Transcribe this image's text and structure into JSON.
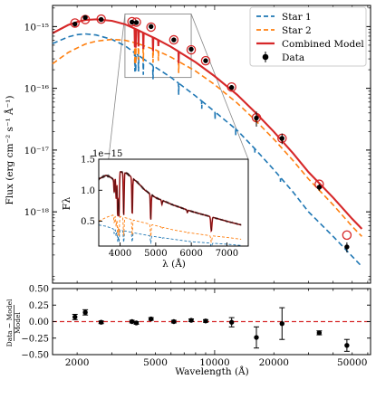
{
  "chart_data": [
    {
      "id": "main",
      "type": "scatter",
      "xscale": "log",
      "yscale": "log",
      "xlim": [
        1500,
        62000
      ],
      "ylim": [
        7e-20,
        2.2e-15
      ],
      "ylabel": "Flux (erg cm⁻² s⁻¹ Å⁻¹)",
      "yticks": [
        {
          "value": 1e-15,
          "label": "10⁻¹⁵"
        },
        {
          "value": 1e-16,
          "label": "10⁻¹⁶"
        },
        {
          "value": 1e-17,
          "label": "10⁻¹⁷"
        },
        {
          "value": 1e-18,
          "label": "10⁻¹⁸"
        }
      ],
      "grid": false,
      "legend_position": "top-right",
      "legend": [
        {
          "key": "star1",
          "label": "Star 1"
        },
        {
          "key": "star2",
          "label": "Star 2"
        },
        {
          "key": "combined",
          "label": "Combined Model"
        },
        {
          "key": "data",
          "label": "Data"
        }
      ],
      "colors": {
        "star1": "#1f77b4",
        "star2": "#ff7f0e",
        "combined": "#d62728",
        "data": "#000000"
      },
      "star1": [
        [
          1500,
          5.3e-16
        ],
        [
          1800,
          6.8e-16
        ],
        [
          2000,
          7.4e-16
        ],
        [
          2200,
          7.6e-16
        ],
        [
          2500,
          7.3e-16
        ],
        [
          3000,
          6.2e-16
        ],
        [
          3500,
          4.9e-16
        ],
        [
          4000,
          3.6e-16
        ],
        [
          5000,
          2.2e-16
        ],
        [
          6000,
          1.5e-16
        ],
        [
          8000,
          7.5e-17
        ],
        [
          10000,
          4.2e-17
        ],
        [
          13000,
          2.1e-17
        ],
        [
          16000,
          1.05e-17
        ],
        [
          20000,
          4.8e-18
        ],
        [
          25000,
          2.1e-18
        ],
        [
          30000,
          1e-18
        ],
        [
          40000,
          4e-19
        ],
        [
          50000,
          1.9e-19
        ],
        [
          56000,
          1.3e-19
        ]
      ],
      "star1_lines": [
        [
          3933,
          0.5
        ],
        [
          3968,
          0.5
        ],
        [
          4101,
          0.45
        ],
        [
          4340,
          0.45
        ],
        [
          4861,
          0.4
        ],
        [
          6563,
          0.35
        ],
        [
          8600,
          0.25
        ],
        [
          10050,
          0.25
        ],
        [
          12800,
          0.2
        ],
        [
          16000,
          0.15
        ],
        [
          21600,
          0.15
        ]
      ],
      "star2": [
        [
          1500,
          2.5e-16
        ],
        [
          1800,
          3.8e-16
        ],
        [
          2000,
          4.5e-16
        ],
        [
          2200,
          5.2e-16
        ],
        [
          2500,
          5.8e-16
        ],
        [
          3000,
          6.2e-16
        ],
        [
          3500,
          6e-16
        ],
        [
          4000,
          5.4e-16
        ],
        [
          5000,
          4.2e-16
        ],
        [
          6000,
          3.2e-16
        ],
        [
          8000,
          1.9e-16
        ],
        [
          10000,
          1.15e-16
        ],
        [
          13000,
          5.8e-17
        ],
        [
          16000,
          3.1e-17
        ],
        [
          20000,
          1.5e-17
        ],
        [
          25000,
          6.8e-18
        ],
        [
          30000,
          3.4e-18
        ],
        [
          40000,
          1.3e-18
        ],
        [
          50000,
          5.8e-19
        ],
        [
          56000,
          4e-19
        ]
      ],
      "star2_lines": [
        [
          3933,
          0.55
        ],
        [
          3968,
          0.55
        ],
        [
          4101,
          0.45
        ],
        [
          4340,
          0.45
        ],
        [
          4861,
          0.4
        ],
        [
          5175,
          0.3
        ],
        [
          6563,
          0.35
        ]
      ],
      "combined": [
        [
          1500,
          7.8e-16
        ],
        [
          1800,
          1.06e-15
        ],
        [
          2000,
          1.19e-15
        ],
        [
          2200,
          1.28e-15
        ],
        [
          2500,
          1.31e-15
        ],
        [
          3000,
          1.24e-15
        ],
        [
          3500,
          1.09e-15
        ],
        [
          4000,
          9e-16
        ],
        [
          5000,
          6.4e-16
        ],
        [
          6000,
          4.7e-16
        ],
        [
          8000,
          2.65e-16
        ],
        [
          10000,
          1.57e-16
        ],
        [
          13000,
          7.9e-17
        ],
        [
          16000,
          4.15e-17
        ],
        [
          20000,
          1.98e-17
        ],
        [
          25000,
          8.9e-18
        ],
        [
          30000,
          4.4e-18
        ],
        [
          40000,
          1.7e-18
        ],
        [
          50000,
          7.7e-19
        ],
        [
          56000,
          5.3e-19
        ]
      ],
      "combined_lines": [
        [
          3933,
          0.5
        ],
        [
          3968,
          0.5
        ],
        [
          4101,
          0.45
        ],
        [
          4340,
          0.45
        ],
        [
          4861,
          0.4
        ],
        [
          5175,
          0.2
        ],
        [
          6563,
          0.35
        ]
      ],
      "model_points": [
        [
          1950,
          1.14e-15
        ],
        [
          2200,
          1.3e-15
        ],
        [
          2650,
          1.32e-15
        ],
        [
          3800,
          1.2e-15
        ],
        [
          4000,
          1.18e-15
        ],
        [
          4750,
          9.8e-16
        ],
        [
          6200,
          6.1e-16
        ],
        [
          7600,
          4.2e-16
        ],
        [
          9000,
          2.8e-16
        ],
        [
          12200,
          1.05e-16
        ],
        [
          16300,
          3.35e-17
        ],
        [
          22000,
          1.55e-17
        ],
        [
          34000,
          2.8e-18
        ],
        [
          47000,
          4.2e-19
        ]
      ],
      "data": [
        {
          "x": 1950,
          "y": 1.1e-15,
          "err": [
            9.5e-17,
            9.5e-17
          ]
        },
        {
          "x": 2200,
          "y": 1.4e-15,
          "err": [
            1.2e-16,
            1.2e-16
          ]
        },
        {
          "x": 2650,
          "y": 1.3e-15,
          "err": [
            8e-17,
            8e-17
          ]
        },
        {
          "x": 3800,
          "y": 1.18e-15,
          "err": [
            7e-17,
            7e-17
          ]
        },
        {
          "x": 4000,
          "y": 1.16e-15,
          "err": [
            7e-17,
            7e-17
          ]
        },
        {
          "x": 4750,
          "y": 1e-15,
          "err": [
            5e-17,
            5e-17
          ]
        },
        {
          "x": 6200,
          "y": 6.1e-16,
          "err": [
            4e-17,
            4e-17
          ]
        },
        {
          "x": 7600,
          "y": 4.3e-16,
          "err": [
            3e-17,
            3e-17
          ]
        },
        {
          "x": 9000,
          "y": 2.8e-16,
          "err": [
            2e-17,
            2e-17
          ]
        },
        {
          "x": 12200,
          "y": 1.03e-16,
          "err": [
            8e-18,
            8e-18
          ]
        },
        {
          "x": 16300,
          "y": 3.3e-17,
          "err": [
            9e-18,
            9e-18
          ]
        },
        {
          "x": 22000,
          "y": 1.55e-17,
          "err": [
            3e-18,
            3e-18
          ]
        },
        {
          "x": 34000,
          "y": 2.5e-18,
          "err": [
            3e-19,
            3e-19
          ]
        },
        {
          "x": 47000,
          "y": 2.7e-19,
          "err": [
            5e-20,
            5e-20
          ]
        }
      ],
      "zoom_box": {
        "xlim": [
          3500,
          7600
        ],
        "ylim": [
          1.5e-16,
          1.6e-15
        ]
      }
    },
    {
      "id": "inset",
      "type": "line",
      "xlim": [
        3400,
        7600
      ],
      "ylim": [
        0.1,
        1.5
      ],
      "offset_label": "1e−15",
      "ylabel": "Fλ",
      "xlabel": "λ (Å)",
      "xticks": [
        4000,
        5000,
        6000,
        7000
      ],
      "yticks": [
        0.5,
        1.0,
        1.5
      ],
      "colors": {
        "star1": "#1f77b4",
        "star2": "#ff7f0e",
        "combined": "#d62728",
        "data": "#000000"
      },
      "star1": [
        [
          3400,
          0.44
        ],
        [
          3600,
          0.42
        ],
        [
          3800,
          0.38
        ],
        [
          4000,
          0.36
        ],
        [
          4500,
          0.3
        ],
        [
          5000,
          0.25
        ],
        [
          5500,
          0.21
        ],
        [
          6000,
          0.17
        ],
        [
          6500,
          0.15
        ],
        [
          7000,
          0.13
        ],
        [
          7400,
          0.11
        ]
      ],
      "star2": [
        [
          3400,
          0.5
        ],
        [
          3600,
          0.56
        ],
        [
          3800,
          0.6
        ],
        [
          4000,
          0.58
        ],
        [
          4500,
          0.5
        ],
        [
          5000,
          0.43
        ],
        [
          5500,
          0.36
        ],
        [
          6000,
          0.31
        ],
        [
          6500,
          0.27
        ],
        [
          7000,
          0.24
        ],
        [
          7400,
          0.21
        ]
      ],
      "combined": [
        [
          3400,
          1.18
        ],
        [
          3600,
          1.24
        ],
        [
          3700,
          1.22
        ],
        [
          3800,
          1.18
        ],
        [
          4000,
          1.3
        ],
        [
          4200,
          1.27
        ],
        [
          4500,
          1.12
        ],
        [
          4700,
          1.0
        ],
        [
          5000,
          0.88
        ],
        [
          5500,
          0.76
        ],
        [
          6000,
          0.66
        ],
        [
          6500,
          0.58
        ],
        [
          7000,
          0.5
        ],
        [
          7400,
          0.44
        ]
      ],
      "lines": [
        [
          3835,
          0.2
        ],
        [
          3889,
          0.3
        ],
        [
          3933,
          0.55
        ],
        [
          3968,
          0.55
        ],
        [
          4101,
          0.55
        ],
        [
          4340,
          0.5
        ],
        [
          4861,
          0.45
        ],
        [
          5175,
          0.08
        ],
        [
          5890,
          0.06
        ],
        [
          6563,
          0.4
        ]
      ]
    },
    {
      "id": "residuals",
      "type": "scatter",
      "xscale": "log",
      "xlim": [
        1500,
        62000
      ],
      "ylim": [
        -0.5,
        0.5
      ],
      "xlabel": "Wavelength (Å)",
      "ylabel_num": "Data − Model",
      "ylabel_den": "Model",
      "xticks": [
        2000,
        5000,
        10000,
        20000,
        50000
      ],
      "yticks": [
        0.5,
        0.25,
        0.0,
        -0.25,
        -0.5
      ],
      "ytick_labels": [
        "0.50",
        "0.25",
        "0.00",
        "−0.25",
        "−0.50"
      ],
      "zero_line_color": "#d62728",
      "points": [
        {
          "x": 1950,
          "y": 0.07,
          "err": 0.04
        },
        {
          "x": 2200,
          "y": 0.14,
          "err": 0.04
        },
        {
          "x": 2650,
          "y": -0.01,
          "err": 0.02
        },
        {
          "x": 3800,
          "y": 0.0,
          "err": 0.02
        },
        {
          "x": 4000,
          "y": -0.02,
          "err": 0.02
        },
        {
          "x": 4750,
          "y": 0.04,
          "err": 0.02
        },
        {
          "x": 6200,
          "y": 0.0,
          "err": 0.02
        },
        {
          "x": 7600,
          "y": 0.02,
          "err": 0.02
        },
        {
          "x": 9000,
          "y": 0.01,
          "err": 0.02
        },
        {
          "x": 12200,
          "y": -0.01,
          "err": 0.07
        },
        {
          "x": 16300,
          "y": -0.24,
          "err": 0.16
        },
        {
          "x": 22000,
          "y": -0.03,
          "err": 0.24
        },
        {
          "x": 34000,
          "y": -0.17,
          "err": 0.03
        },
        {
          "x": 47000,
          "y": -0.36,
          "err": 0.09
        }
      ]
    }
  ]
}
